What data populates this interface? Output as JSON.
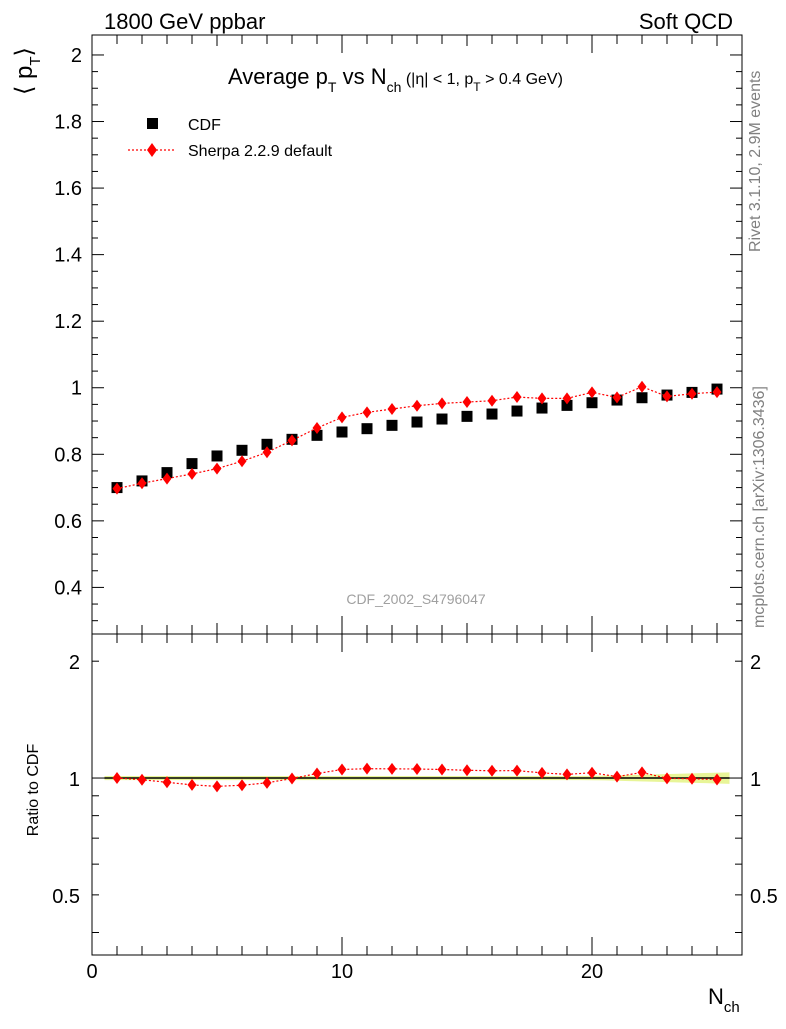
{
  "header": {
    "left": "1800 GeV ppbar",
    "right": "Soft QCD"
  },
  "side_text": {
    "rivet": "Rivet 3.1.10,  2.9M events",
    "mcplots": "mcplots.cern.ch [arXiv:1306.3436]"
  },
  "chart_data": [
    {
      "type": "scatter",
      "title_main": "Average p",
      "title_sub1": "T",
      "title_mid": " vs N",
      "title_sub2": "ch",
      "title_tail1": " (|η| < 1, p",
      "title_sub3": "T",
      "title_tail2": " > 0.4 GeV)",
      "ylabel": "⟨ p",
      "ylabel_sub": "T",
      "ylabel_close": "⟩",
      "watermark": "CDF_2002_S4796047",
      "xlim": [
        0,
        26
      ],
      "ylim": [
        0.26,
        2.06
      ],
      "yticks": [
        "0.4",
        "0.6",
        "0.8",
        "1",
        "1.2",
        "1.4",
        "1.6",
        "1.8",
        "2"
      ],
      "legend": [
        "CDF",
        "Sherpa 2.2.9 default"
      ],
      "series": [
        {
          "name": "CDF",
          "color": "#000000",
          "marker": "square",
          "x": [
            1,
            2,
            3,
            4,
            5,
            6,
            7,
            8,
            9,
            10,
            11,
            12,
            13,
            14,
            15,
            16,
            17,
            18,
            19,
            20,
            21,
            22,
            23,
            24,
            25
          ],
          "y": [
            0.7,
            0.72,
            0.745,
            0.772,
            0.795,
            0.812,
            0.83,
            0.845,
            0.857,
            0.867,
            0.877,
            0.887,
            0.897,
            0.906,
            0.914,
            0.921,
            0.93,
            0.939,
            0.947,
            0.955,
            0.963,
            0.97,
            0.978,
            0.986,
            0.996
          ]
        },
        {
          "name": "Sherpa 2.2.9 default",
          "color": "#ff0000",
          "marker": "diamond",
          "x": [
            1,
            2,
            3,
            4,
            5,
            6,
            7,
            8,
            9,
            10,
            11,
            12,
            13,
            14,
            15,
            16,
            17,
            18,
            19,
            20,
            21,
            22,
            23,
            24,
            25
          ],
          "y": [
            0.697,
            0.713,
            0.727,
            0.741,
            0.757,
            0.779,
            0.806,
            0.842,
            0.879,
            0.911,
            0.926,
            0.936,
            0.946,
            0.953,
            0.957,
            0.961,
            0.972,
            0.968,
            0.968,
            0.986,
            0.971,
            1.003,
            0.974,
            0.982,
            0.987
          ]
        }
      ]
    },
    {
      "type": "line",
      "ylabel": "Ratio to CDF",
      "xlabel": "N",
      "xlabel_sub": "ch",
      "xlim": [
        0,
        26
      ],
      "ylim": [
        0.35,
        2.35
      ],
      "log_y": true,
      "xticks": [
        "0",
        "10",
        "20"
      ],
      "yticks": [
        "0.5",
        "1",
        "2"
      ],
      "band_color": "#e8f598",
      "series": [
        {
          "name": "Sherpa 2.2.9 default",
          "color": "#ff0000",
          "marker": "diamond",
          "x": [
            1,
            2,
            3,
            4,
            5,
            6,
            7,
            8,
            9,
            10,
            11,
            12,
            13,
            14,
            15,
            16,
            17,
            18,
            19,
            20,
            21,
            22,
            23,
            24,
            25
          ],
          "y": [
            1.0,
            0.99,
            0.975,
            0.96,
            0.952,
            0.958,
            0.972,
            0.997,
            1.027,
            1.052,
            1.057,
            1.056,
            1.055,
            1.052,
            1.047,
            1.044,
            1.045,
            1.031,
            1.022,
            1.032,
            1.008,
            1.034,
            0.998,
            0.996,
            0.991
          ]
        }
      ]
    }
  ]
}
